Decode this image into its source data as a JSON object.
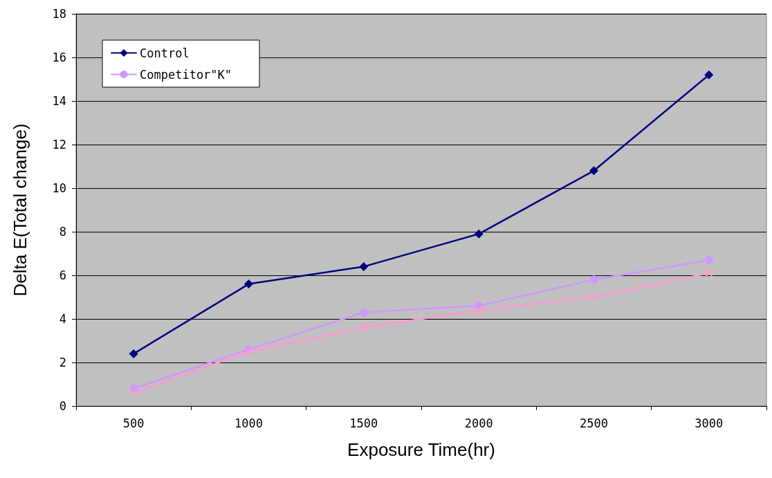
{
  "chart_data": {
    "type": "line",
    "xlabel": "Exposure Time(hr)",
    "ylabel": "Delta E(Total change)",
    "categories": [
      "500",
      "1000",
      "1500",
      "2000",
      "2500",
      "3000"
    ],
    "series": [
      {
        "name": "Control",
        "color": "#000080",
        "marker": "diamond",
        "values": [
          2.4,
          5.6,
          6.4,
          7.9,
          10.8,
          15.2
        ]
      },
      {
        "color": "#ff99cc",
        "marker": "cross",
        "values": [
          0.6,
          2.5,
          3.6,
          4.4,
          5.0,
          6.1
        ]
      },
      {
        "name": "Competitor\"K\"",
        "color": "#cc99ff",
        "marker": "circle",
        "values": [
          0.8,
          2.6,
          4.3,
          4.6,
          5.8,
          6.7
        ]
      }
    ],
    "ylim": [
      0,
      18
    ],
    "yticks": [
      0,
      2,
      4,
      6,
      8,
      10,
      12,
      14,
      16,
      18
    ],
    "grid": "y",
    "legend": "top left",
    "line_style": "solid"
  }
}
